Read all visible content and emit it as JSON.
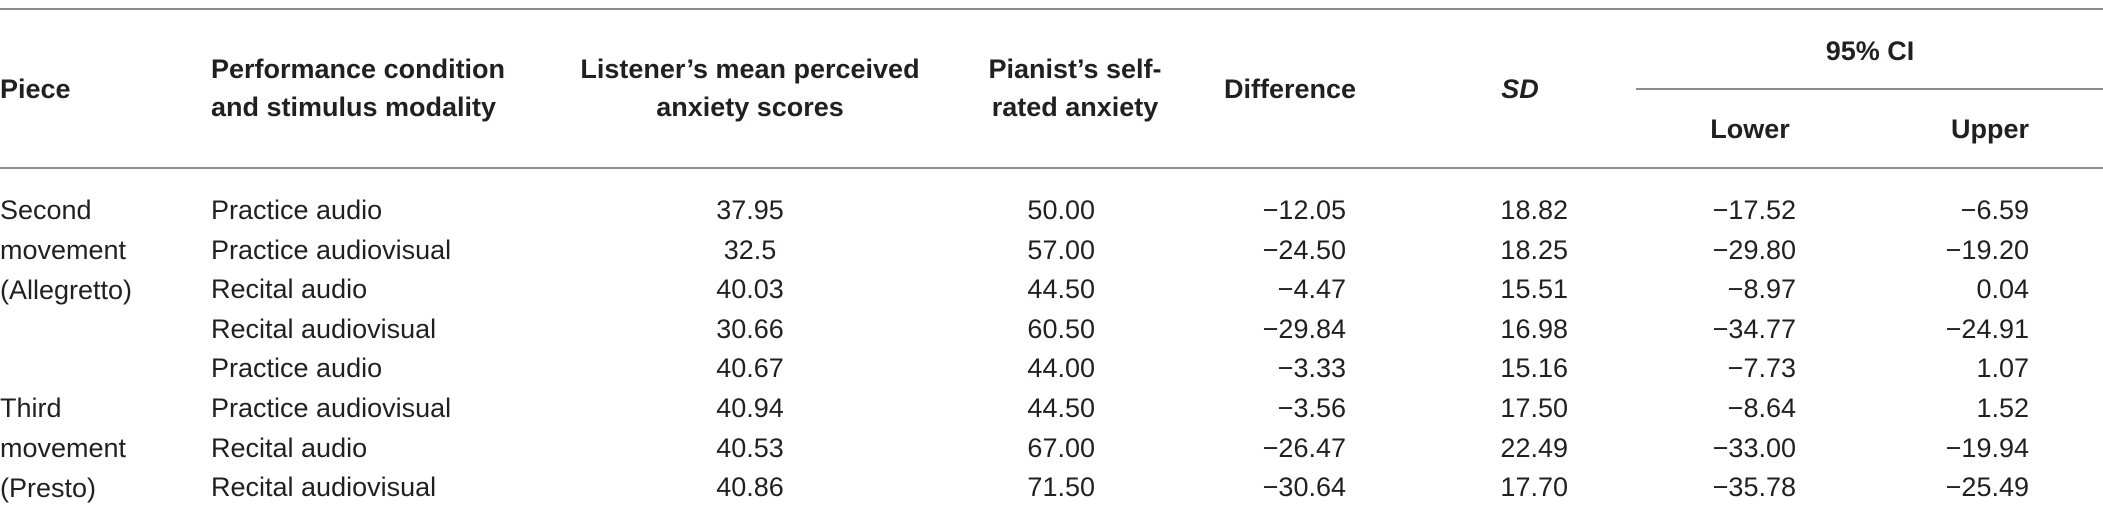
{
  "header": {
    "piece": "Piece",
    "condition": "Performance condition and stimulus modality",
    "listener": "Listener’s mean perceived anxiety scores",
    "pianist": "Pianist’s self-rated anxiety",
    "difference": "Difference",
    "sd": "SD",
    "ci": "95% CI",
    "lower": "Lower",
    "upper": "Upper"
  },
  "pieces": [
    {
      "lines": [
        "Second",
        "movement",
        "(Allegretto)"
      ]
    },
    {
      "lines": [
        "Third",
        "movement",
        "(Presto)"
      ]
    }
  ],
  "rows": [
    {
      "condition": "Practice audio",
      "listener": "37.95",
      "pianist": "50.00",
      "difference": "−12.05",
      "sd": "18.82",
      "lower": "−17.52",
      "upper": "−6.59"
    },
    {
      "condition": "Practice audiovisual",
      "listener": "32.5",
      "pianist": "57.00",
      "difference": "−24.50",
      "sd": "18.25",
      "lower": "−29.80",
      "upper": "−19.20"
    },
    {
      "condition": "Recital audio",
      "listener": "40.03",
      "pianist": "44.50",
      "difference": "−4.47",
      "sd": "15.51",
      "lower": "−8.97",
      "upper": "0.04"
    },
    {
      "condition": "Recital audiovisual",
      "listener": "30.66",
      "pianist": "60.50",
      "difference": "−29.84",
      "sd": "16.98",
      "lower": "−34.77",
      "upper": "−24.91"
    },
    {
      "condition": "Practice audio",
      "listener": "40.67",
      "pianist": "44.00",
      "difference": "−3.33",
      "sd": "15.16",
      "lower": "−7.73",
      "upper": "1.07"
    },
    {
      "condition": "Practice audiovisual",
      "listener": "40.94",
      "pianist": "44.50",
      "difference": "−3.56",
      "sd": "17.50",
      "lower": "−8.64",
      "upper": "1.52"
    },
    {
      "condition": "Recital audio",
      "listener": "40.53",
      "pianist": "67.00",
      "difference": "−26.47",
      "sd": "22.49",
      "lower": "−33.00",
      "upper": "−19.94"
    },
    {
      "condition": "Recital audiovisual",
      "listener": "40.86",
      "pianist": "71.50",
      "difference": "−30.64",
      "sd": "17.70",
      "lower": "−35.78",
      "upper": "−25.49"
    }
  ]
}
